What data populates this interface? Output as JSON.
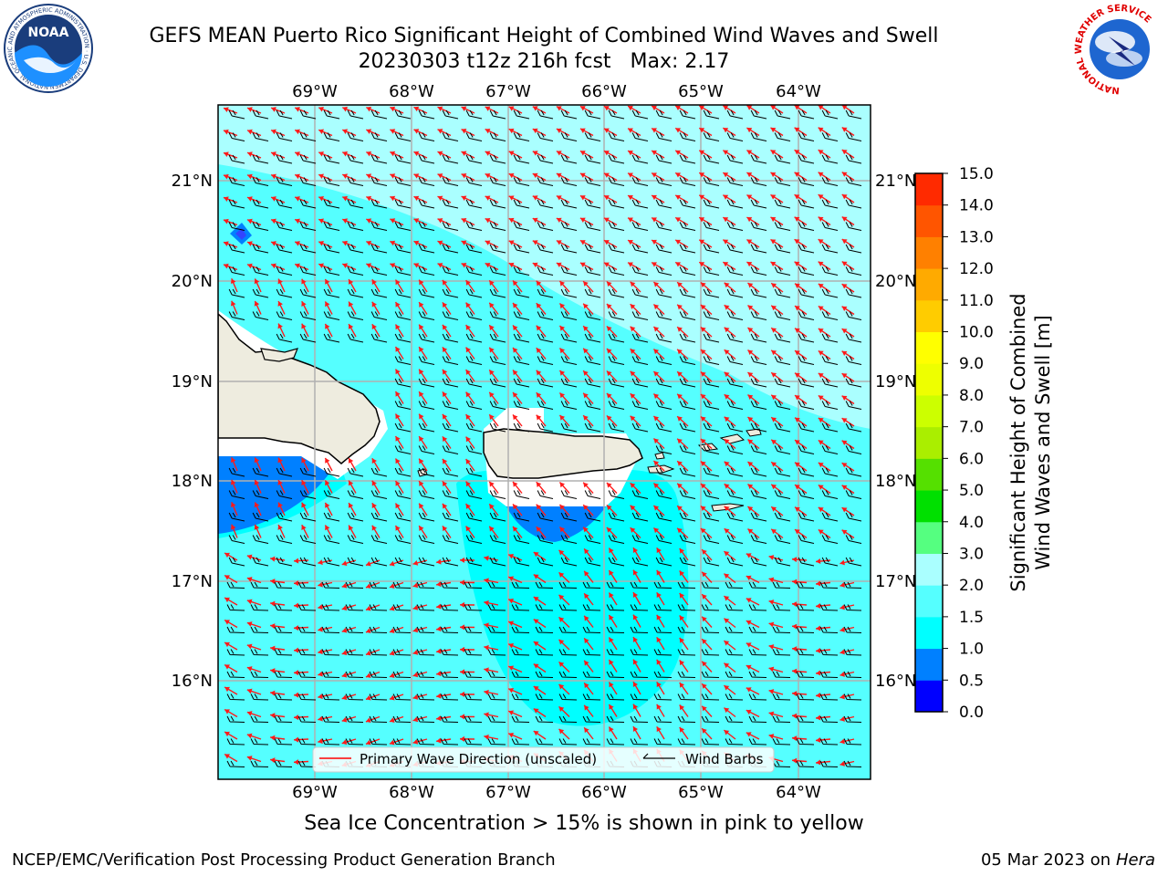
{
  "title": {
    "line1": "GEFS MEAN Puerto Rico Significant Height of Combined Wind Waves and Swell",
    "line2": "20230303 t12z 216h fcst",
    "max_label": "Max: 2.17"
  },
  "logos": {
    "left": {
      "name": "noaa-logo",
      "text": "NOAA",
      "ring": "NATIONAL OCEANIC AND ATMOSPHERIC ADMINISTRATION · U.S. DEPARTMENT OF COMMERCE"
    },
    "right": {
      "name": "nws-logo",
      "ring": "NATIONAL WEATHER SERVICE"
    }
  },
  "map": {
    "lon_labels": [
      "69°W",
      "68°W",
      "67°W",
      "66°W",
      "65°W",
      "64°W"
    ],
    "lat_labels": [
      "21°N",
      "20°N",
      "19°N",
      "18°N",
      "17°N",
      "16°N"
    ],
    "legend": {
      "wave_label": "Primary Wave Direction (unscaled)",
      "barb_label": "Wind Barbs",
      "wave_color": "#ff0000",
      "barb_color": "#000000"
    },
    "land_color": "#eeecdf",
    "fill_colors": {
      "ocean_1_5_2": "#55ffff",
      "ocean_2_3": "#aaffff",
      "ocean_1_1_5": "#00ffff",
      "ocean_0_5_1": "#0080ff"
    }
  },
  "colorbar": {
    "label_line1": "Significant Height of Combined",
    "label_line2": "Wind Waves and Swell [m]",
    "ticks": [
      "0.0",
      "0.5",
      "1.0",
      "1.5",
      "2.0",
      "3.0",
      "4.0",
      "5.0",
      "6.0",
      "7.0",
      "8.0",
      "9.0",
      "10.0",
      "11.0",
      "12.0",
      "13.0",
      "14.0",
      "15.0"
    ],
    "colors": [
      "#0000ff",
      "#0080ff",
      "#00ffff",
      "#55ffff",
      "#aaffff",
      "#55ff80",
      "#00e000",
      "#55e000",
      "#aaee00",
      "#ccff00",
      "#eeff00",
      "#ffff00",
      "#ffcc00",
      "#ffaa00",
      "#ff8000",
      "#ff5500",
      "#ff2a00",
      "#ff0000"
    ]
  },
  "footer": {
    "note": "Sea Ice Concentration > 15% is shown in pink to yellow",
    "org": "NCEP/EMC/Verification Post Processing Product Generation Branch",
    "date": "05 Mar 2023 on",
    "host": "Hera"
  }
}
